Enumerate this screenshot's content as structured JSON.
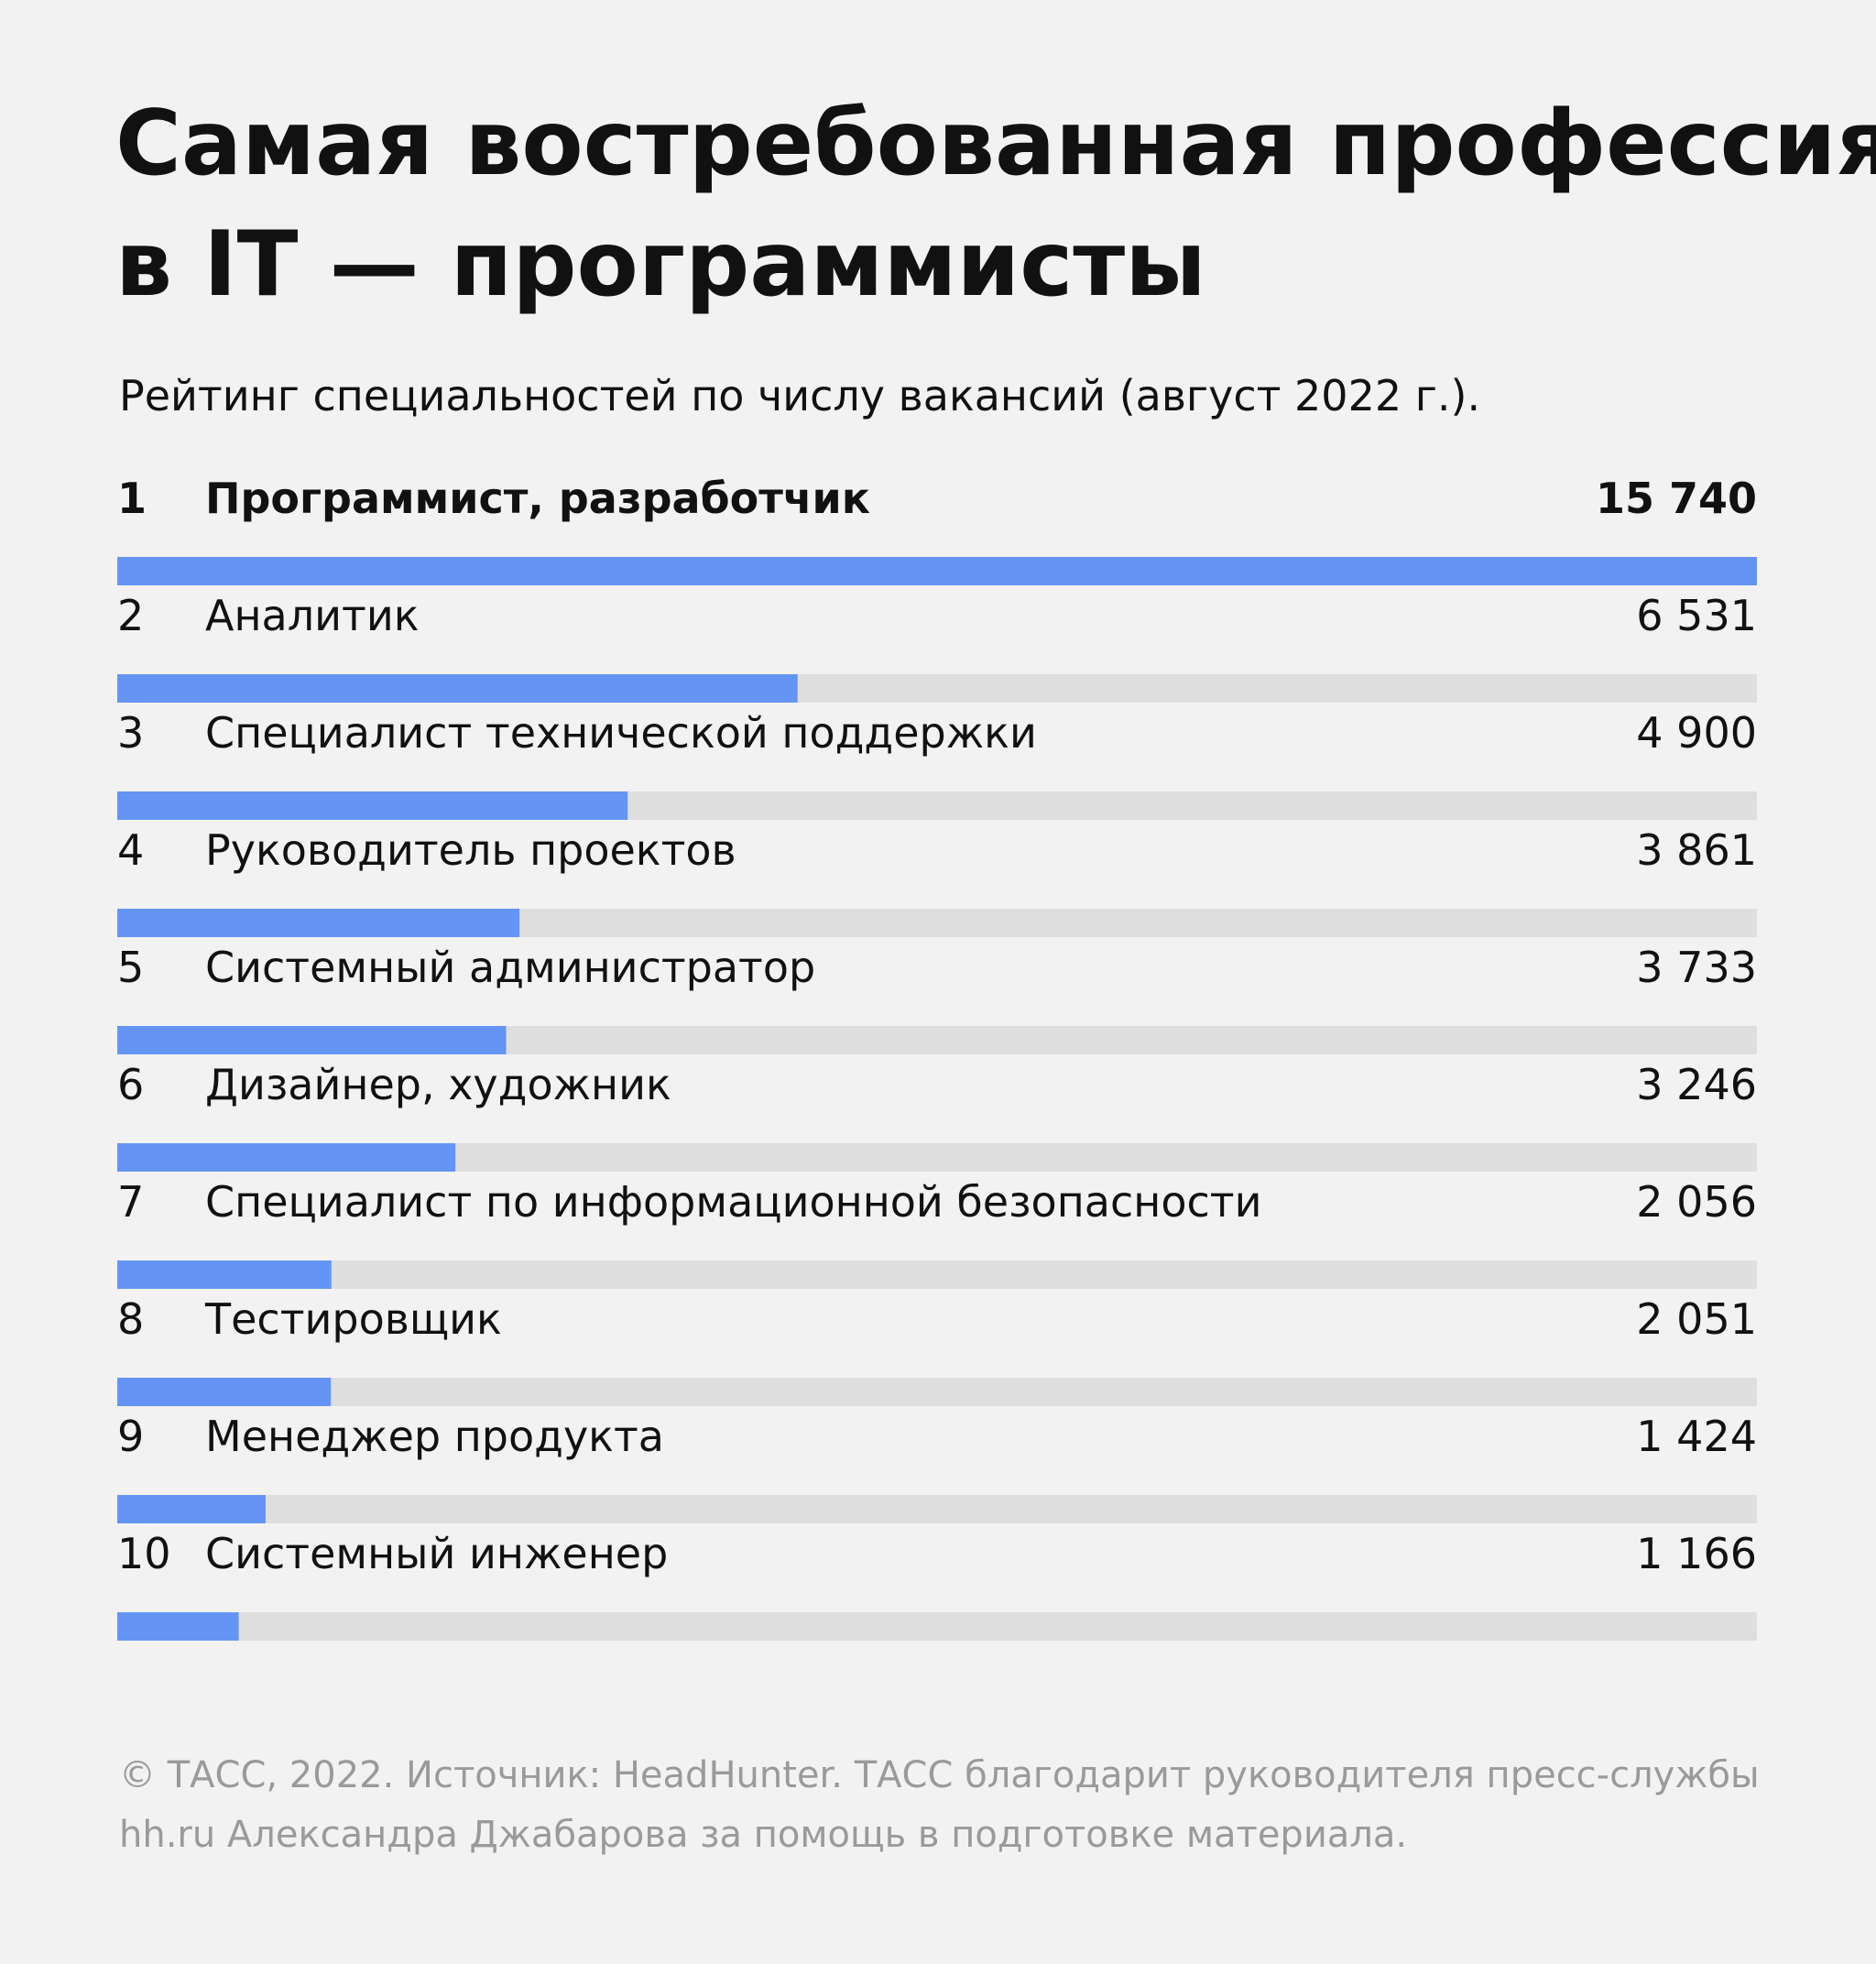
{
  "chart_data": {
    "type": "bar",
    "orientation": "horizontal",
    "title": "Самая востребованная профессия в IT — программисты",
    "subtitle": "Рейтинг специальностей по числу вакансий (август 2022 г.).",
    "ranks": [
      1,
      2,
      3,
      4,
      5,
      6,
      7,
      8,
      9,
      10
    ],
    "categories": [
      "Программист, разработчик",
      "Аналитик",
      "Специалист технической поддержки",
      "Руководитель проектов",
      "Системный администратор",
      "Дизайнер, художник",
      "Специалист по информационной безопасности",
      "Тестировщик",
      "Менеджер продукта",
      "Системный инженер"
    ],
    "values": [
      15740,
      6531,
      4900,
      3861,
      3733,
      3246,
      2056,
      2051,
      1424,
      1166
    ],
    "value_labels": [
      "15 740",
      "6 531",
      "4 900",
      "3 861",
      "3 733",
      "3 246",
      "2 056",
      "2 051",
      "1 424",
      "1 166"
    ],
    "color": "#6495f4",
    "track_color": "#dedede",
    "source": [
      "© ТАСС, 2022. Источник: HeadHunter. ТАСС благодарит руководителя пресс-службы",
      "hh.ru Александра Джабарова за помощь в подготовке материала."
    ]
  }
}
